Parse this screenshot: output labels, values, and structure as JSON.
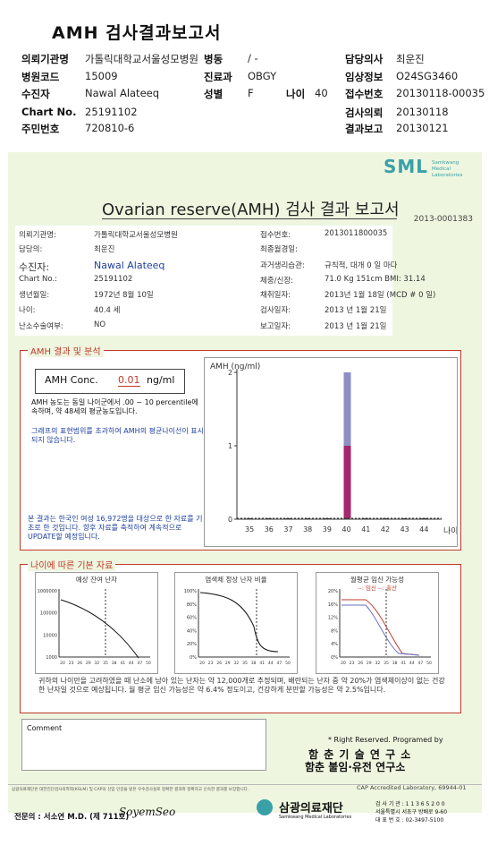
{
  "header": {
    "title": "AMH 검사결과보고서",
    "rows": [
      {
        "k1": "의뢰기관명",
        "v1": "가톨릭대학교서울성모병원",
        "k2": "병동",
        "v2": "/ -",
        "k3": "담당의사",
        "v3": "최운진"
      },
      {
        "k1": "병원코드",
        "v1": "15009",
        "k2": "진료과",
        "v2": "OBGY",
        "k3": "임상정보",
        "v3": "O24SG3460"
      },
      {
        "k1": "수진자",
        "v1": "Nawal Alateeq",
        "k2": "성별",
        "v2": "F",
        "k2b": "나이",
        "v2b": "40",
        "k3": "접수번호",
        "v3": "20130118-00035"
      },
      {
        "k1": "Chart No.",
        "v1": "25191102",
        "k3": "검사의뢰",
        "v3": "20130118"
      },
      {
        "k1": "주민번호",
        "v1": "720810-6",
        "k3": "결과보고",
        "v3": "20130121"
      }
    ]
  },
  "report": {
    "logo": "SML",
    "logo_sub": "Samkwang Medical Laboratories",
    "title": "Ovarian reserve(AMH) 검사 결과 보고서",
    "number": "2013-0001383",
    "info_left": [
      {
        "label": "의뢰기관명:",
        "value": "가톨릭대학교서울성모병원"
      },
      {
        "label": "담당의:",
        "value": "최운진"
      },
      {
        "label": "수진자:",
        "value": "Nawal Alateeq"
      },
      {
        "label": "Chart No.:",
        "value": "25191102"
      },
      {
        "label": "생년월일:",
        "value": "1972년 8월 10일"
      },
      {
        "label": "나이:",
        "value": "40.4 세"
      },
      {
        "label": "난소수술여부:",
        "value": "NO"
      }
    ],
    "info_right": [
      {
        "label": "접수번호:",
        "value": "2013011800035"
      },
      {
        "label": "최종월경일:",
        "value": ""
      },
      {
        "label": "과거생리습관:",
        "value": "규칙적, 대개   0 일 마다"
      },
      {
        "label": "체중/신장:",
        "value": "71.0 Kg   151cm   BMI: 31.14"
      },
      {
        "label": "채취일자:",
        "value": "2013년 1월 18일   (MCD # 0 일)"
      },
      {
        "label": "검사일자:",
        "value": "2013 년 1월 21일"
      },
      {
        "label": "보고일자:",
        "value": "2013 년 1월 21일"
      }
    ],
    "amh_section_title": "AMH 결과 및 분석",
    "amh_label": "AMH Conc.",
    "amh_value": "0.01",
    "amh_unit": "ng/ml",
    "amh_text1": "AMH 농도는 동일 나이군에서   .00 ~  10 percentile에 속하며, 약  48세의 평균농도입니다.",
    "amh_text2": "그래프의 표현범위를 초과하여 AMH의 평균나이선이 표시되지 않습니다.",
    "amh_text3": "본 결과는 한국인 여성 16,972명을 대상으로 한 자료를 기초로 한 것입니다. 향후 자료를 축적하여 계속적으로 UPDATE할 예정입니다.",
    "basic_section_title": "나이에 따른 기본 자료",
    "chart1_title": "예상 잔여 난자",
    "chart2_title": "염색체 정상 난자 비율",
    "chart3_title": "월평균 임신 가능성",
    "chart3_legend": "--: 임신 --: 출산",
    "summary": "귀하의 나이만을 고려하였을 때 난소에 남아 있는 난자는 약   12,000개로 추정되며, 배란되는 난자 중 약  20%가 염색체이상이 없는 건강한 난자일 것으로 예상됩니다. 월 평균 임신 가능성은 약 6.4% 정도이고, 건강하게 분만할 가능성은 약 2.5%입니다.",
    "comment_label": "Comment",
    "rights": "* Right Reserved. Programed by",
    "institute1": "함 춘 기 술 연 구 소",
    "institute2": "함춘 불임·유전 연구소",
    "footer_left": "삼광의료재단은 대한진단검사의학회(KSLM) 및 CAP의 신임 인증을 받은 우수검사실로 정확한 결과와 정확하고 신속한 결과를 보장합니다.",
    "footer_cap": "CAP  Accredited  Laboratory,  69944-01",
    "specialist": "전문의 : 서소연 M.D. (제 711호)",
    "signature": "SoyemSeo",
    "foundation": "삼광의료재단",
    "foundation_sub": "Samkwang Medical Laboratories",
    "contact1": "검 사 기 관 : 1 1 3 6 5 2 0 0",
    "contact2": "서울특별시 서초구 방배로 9-60",
    "contact3": "대 표 번 호 : 02-3497-5100"
  },
  "chart_data": [
    {
      "type": "bar",
      "title": "AMH (ng/ml)",
      "xlabel": "나이",
      "categories": [
        "35",
        "36",
        "37",
        "38",
        "39",
        "40",
        "41",
        "42",
        "43",
        "44"
      ],
      "ylim": [
        0,
        2
      ],
      "yticks": [
        "0",
        "1",
        "2"
      ],
      "series": [
        {
          "values": [
            0,
            0,
            0,
            0,
            0,
            0.01,
            0,
            0,
            0,
            0
          ]
        }
      ],
      "reference_bar": {
        "category": "40",
        "range": [
          0.01,
          2.0
        ]
      }
    },
    {
      "type": "line",
      "title": "예상 잔여 난자",
      "yticks": [
        "1000000",
        "100000",
        "10000",
        "1000"
      ],
      "xticks": [
        "20",
        "23",
        "26",
        "29",
        "32",
        "35",
        "38",
        "41",
        "44",
        "47",
        "50"
      ]
    },
    {
      "type": "line",
      "title": "염색체 정상 난자 비율",
      "yticks": [
        "100%",
        "80%",
        "60%",
        "40%",
        "20%",
        "0%"
      ],
      "xticks": [
        "20",
        "23",
        "26",
        "29",
        "32",
        "35",
        "38",
        "41",
        "44",
        "47",
        "50"
      ]
    },
    {
      "type": "line",
      "title": "월평균 임신 가능성",
      "yticks": [
        "20%",
        "16%",
        "12%",
        "8%",
        "4%",
        "0%"
      ],
      "xticks": [
        "20",
        "23",
        "26",
        "29",
        "32",
        "35",
        "38",
        "41",
        "44",
        "47",
        "50"
      ]
    }
  ]
}
